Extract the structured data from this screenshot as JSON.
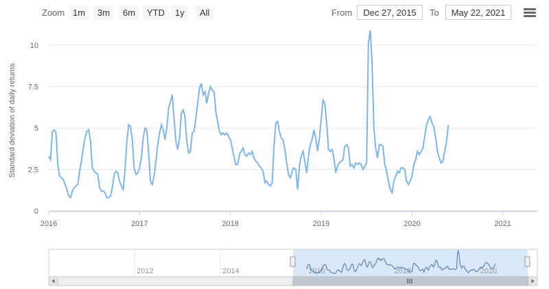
{
  "toolbar": {
    "zoom_label": "Zoom",
    "buttons": [
      "1m",
      "3m",
      "6m",
      "YTD",
      "1y",
      "All"
    ],
    "from_label": "From",
    "from_value": "Dec 27, 2015",
    "to_label": "To",
    "to_value": "May 22, 2021"
  },
  "menu": {
    "icon": "hamburger-menu-icon"
  },
  "colors": {
    "series": "#7cb5ec",
    "grid": "#e6e6e6",
    "navigator_mask": "#cce0f5"
  },
  "chart_data": {
    "type": "line",
    "ylabel": "Standard deviation of daily returns",
    "ylim": [
      0,
      11
    ],
    "y_ticks": [
      "0",
      "2.5",
      "5",
      "7.5",
      "10"
    ],
    "xlim": [
      2016.0,
      2021.38
    ],
    "x_ticks": [
      "2016",
      "2017",
      "2018",
      "2019",
      "2020",
      "2021"
    ],
    "grid": true,
    "series": [
      {
        "values": [
          [
            2016.0,
            3.3
          ],
          [
            2016.02,
            3.1
          ],
          [
            2016.04,
            4.8
          ],
          [
            2016.06,
            4.9
          ],
          [
            2016.08,
            4.7
          ],
          [
            2016.1,
            2.8
          ],
          [
            2016.12,
            2.1
          ],
          [
            2016.14,
            2.0
          ],
          [
            2016.16,
            1.9
          ],
          [
            2016.18,
            1.6
          ],
          [
            2016.2,
            1.3
          ],
          [
            2016.22,
            0.9
          ],
          [
            2016.24,
            0.8
          ],
          [
            2016.26,
            1.2
          ],
          [
            2016.28,
            1.4
          ],
          [
            2016.3,
            1.5
          ],
          [
            2016.32,
            1.6
          ],
          [
            2016.34,
            2.4
          ],
          [
            2016.36,
            3.0
          ],
          [
            2016.38,
            3.8
          ],
          [
            2016.4,
            4.4
          ],
          [
            2016.42,
            4.8
          ],
          [
            2016.44,
            4.9
          ],
          [
            2016.46,
            4.2
          ],
          [
            2016.48,
            2.6
          ],
          [
            2016.5,
            2.4
          ],
          [
            2016.52,
            2.3
          ],
          [
            2016.54,
            2.2
          ],
          [
            2016.56,
            1.4
          ],
          [
            2016.58,
            1.2
          ],
          [
            2016.6,
            1.2
          ],
          [
            2016.62,
            1.1
          ],
          [
            2016.64,
            0.8
          ],
          [
            2016.66,
            0.8
          ],
          [
            2016.68,
            0.9
          ],
          [
            2016.7,
            1.4
          ],
          [
            2016.72,
            2.2
          ],
          [
            2016.74,
            2.4
          ],
          [
            2016.76,
            2.3
          ],
          [
            2016.78,
            1.8
          ],
          [
            2016.8,
            1.5
          ],
          [
            2016.82,
            1.3
          ],
          [
            2016.84,
            2.5
          ],
          [
            2016.86,
            4.2
          ],
          [
            2016.88,
            5.2
          ],
          [
            2016.9,
            5.1
          ],
          [
            2016.92,
            4.3
          ],
          [
            2016.94,
            2.6
          ],
          [
            2016.96,
            2.2
          ],
          [
            2016.98,
            2.3
          ],
          [
            2017.0,
            2.6
          ],
          [
            2017.02,
            3.2
          ],
          [
            2017.04,
            4.4
          ],
          [
            2017.06,
            5.0
          ],
          [
            2017.08,
            4.9
          ],
          [
            2017.1,
            3.5
          ],
          [
            2017.12,
            1.8
          ],
          [
            2017.14,
            1.6
          ],
          [
            2017.16,
            2.1
          ],
          [
            2017.18,
            3.0
          ],
          [
            2017.2,
            4.0
          ],
          [
            2017.22,
            4.7
          ],
          [
            2017.24,
            5.2
          ],
          [
            2017.26,
            4.9
          ],
          [
            2017.28,
            4.3
          ],
          [
            2017.3,
            5.0
          ],
          [
            2017.32,
            6.2
          ],
          [
            2017.34,
            6.6
          ],
          [
            2017.36,
            7.0
          ],
          [
            2017.38,
            5.6
          ],
          [
            2017.4,
            4.2
          ],
          [
            2017.42,
            3.7
          ],
          [
            2017.44,
            4.4
          ],
          [
            2017.46,
            5.9
          ],
          [
            2017.48,
            6.1
          ],
          [
            2017.5,
            5.7
          ],
          [
            2017.52,
            4.2
          ],
          [
            2017.54,
            3.5
          ],
          [
            2017.56,
            3.6
          ],
          [
            2017.58,
            4.7
          ],
          [
            2017.6,
            4.8
          ],
          [
            2017.62,
            5.6
          ],
          [
            2017.64,
            6.5
          ],
          [
            2017.66,
            7.4
          ],
          [
            2017.68,
            7.7
          ],
          [
            2017.7,
            7.0
          ],
          [
            2017.72,
            7.2
          ],
          [
            2017.74,
            6.5
          ],
          [
            2017.76,
            7.1
          ],
          [
            2017.78,
            7.5
          ],
          [
            2017.8,
            7.3
          ],
          [
            2017.82,
            7.2
          ],
          [
            2017.84,
            6.0
          ],
          [
            2017.86,
            5.4
          ],
          [
            2017.88,
            4.8
          ],
          [
            2017.9,
            4.6
          ],
          [
            2017.92,
            4.7
          ],
          [
            2017.94,
            4.6
          ],
          [
            2017.96,
            4.7
          ],
          [
            2017.98,
            4.5
          ],
          [
            2018.0,
            4.3
          ],
          [
            2018.02,
            3.8
          ],
          [
            2018.04,
            3.3
          ],
          [
            2018.06,
            2.8
          ],
          [
            2018.08,
            2.8
          ],
          [
            2018.1,
            3.4
          ],
          [
            2018.12,
            3.6
          ],
          [
            2018.14,
            3.8
          ],
          [
            2018.16,
            3.4
          ],
          [
            2018.18,
            3.3
          ],
          [
            2018.2,
            3.5
          ],
          [
            2018.22,
            3.4
          ],
          [
            2018.24,
            3.6
          ],
          [
            2018.26,
            3.2
          ],
          [
            2018.28,
            3.0
          ],
          [
            2018.3,
            2.9
          ],
          [
            2018.32,
            2.7
          ],
          [
            2018.34,
            2.6
          ],
          [
            2018.36,
            2.4
          ],
          [
            2018.38,
            1.7
          ],
          [
            2018.4,
            1.8
          ],
          [
            2018.42,
            1.6
          ],
          [
            2018.44,
            1.5
          ],
          [
            2018.46,
            1.7
          ],
          [
            2018.48,
            3.9
          ],
          [
            2018.5,
            5.3
          ],
          [
            2018.52,
            5.4
          ],
          [
            2018.54,
            4.8
          ],
          [
            2018.56,
            4.4
          ],
          [
            2018.58,
            4.3
          ],
          [
            2018.6,
            3.7
          ],
          [
            2018.62,
            2.9
          ],
          [
            2018.64,
            2.2
          ],
          [
            2018.66,
            2.0
          ],
          [
            2018.68,
            2.4
          ],
          [
            2018.7,
            2.6
          ],
          [
            2018.72,
            2.5
          ],
          [
            2018.74,
            1.3
          ],
          [
            2018.76,
            2.7
          ],
          [
            2018.78,
            3.3
          ],
          [
            2018.8,
            3.6
          ],
          [
            2018.82,
            3.0
          ],
          [
            2018.84,
            2.3
          ],
          [
            2018.86,
            3.3
          ],
          [
            2018.88,
            4.0
          ],
          [
            2018.9,
            4.3
          ],
          [
            2018.92,
            4.9
          ],
          [
            2018.94,
            4.4
          ],
          [
            2018.96,
            3.6
          ],
          [
            2018.98,
            4.4
          ],
          [
            2019.0,
            5.5
          ],
          [
            2019.02,
            6.7
          ],
          [
            2019.04,
            6.5
          ],
          [
            2019.06,
            5.3
          ],
          [
            2019.08,
            3.7
          ],
          [
            2019.1,
            3.6
          ],
          [
            2019.12,
            3.7
          ],
          [
            2019.14,
            3.2
          ],
          [
            2019.16,
            2.3
          ],
          [
            2019.18,
            2.7
          ],
          [
            2019.2,
            2.9
          ],
          [
            2019.22,
            3.0
          ],
          [
            2019.24,
            3.1
          ],
          [
            2019.26,
            3.9
          ],
          [
            2019.28,
            4.0
          ],
          [
            2019.3,
            3.8
          ],
          [
            2019.32,
            2.7
          ],
          [
            2019.34,
            2.8
          ],
          [
            2019.36,
            2.6
          ],
          [
            2019.38,
            2.9
          ],
          [
            2019.4,
            2.8
          ],
          [
            2019.42,
            2.9
          ],
          [
            2019.44,
            2.8
          ],
          [
            2019.46,
            2.5
          ],
          [
            2019.48,
            2.7
          ],
          [
            2019.5,
            2.9
          ],
          [
            2019.52,
            10.1
          ],
          [
            2019.54,
            10.9
          ],
          [
            2019.56,
            9.0
          ],
          [
            2019.58,
            5.0
          ],
          [
            2019.6,
            3.8
          ],
          [
            2019.62,
            3.2
          ],
          [
            2019.64,
            4.0
          ],
          [
            2019.66,
            4.0
          ],
          [
            2019.68,
            3.9
          ],
          [
            2019.7,
            2.8
          ],
          [
            2019.72,
            2.4
          ],
          [
            2019.74,
            1.8
          ],
          [
            2019.76,
            1.3
          ],
          [
            2019.78,
            1.1
          ],
          [
            2019.8,
            1.8
          ],
          [
            2019.82,
            2.1
          ],
          [
            2019.84,
            2.4
          ],
          [
            2019.86,
            2.3
          ],
          [
            2019.88,
            2.6
          ],
          [
            2019.9,
            2.6
          ],
          [
            2019.92,
            2.5
          ],
          [
            2019.94,
            1.8
          ],
          [
            2019.96,
            1.6
          ],
          [
            2019.98,
            1.8
          ],
          [
            2020.0,
            2.1
          ],
          [
            2020.02,
            2.8
          ],
          [
            2020.04,
            3.1
          ],
          [
            2020.06,
            3.6
          ],
          [
            2020.08,
            3.4
          ],
          [
            2020.1,
            3.6
          ],
          [
            2020.12,
            3.8
          ],
          [
            2020.14,
            4.5
          ],
          [
            2020.16,
            5.2
          ],
          [
            2020.18,
            5.5
          ],
          [
            2020.2,
            5.7
          ],
          [
            2020.22,
            5.3
          ],
          [
            2020.24,
            5.1
          ],
          [
            2020.26,
            4.4
          ],
          [
            2020.28,
            3.6
          ],
          [
            2020.3,
            3.2
          ],
          [
            2020.32,
            2.9
          ],
          [
            2020.34,
            3.0
          ],
          [
            2020.36,
            3.6
          ],
          [
            2020.38,
            4.2
          ],
          [
            2020.4,
            5.2
          ]
        ]
      }
    ],
    "navigator": {
      "x_ticks": [
        "2012",
        "2014",
        "2016",
        "2018",
        "2020"
      ]
    }
  }
}
